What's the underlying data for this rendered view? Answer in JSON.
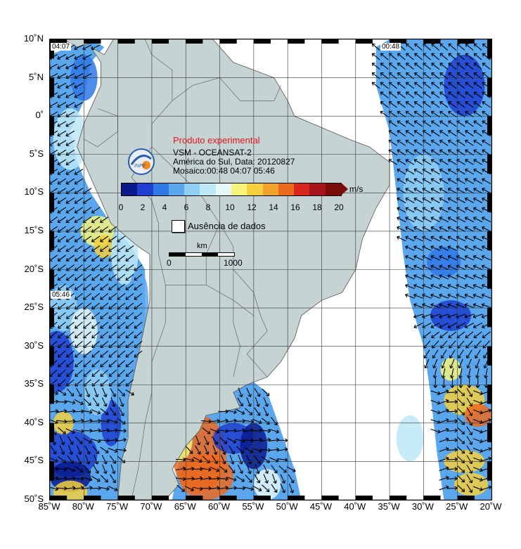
{
  "map": {
    "title": "Produto experimental",
    "subtitle": "VSM - OCEANSAT-2",
    "region_line": "América do Sul, Data: 20120827",
    "mosaic_line": "Mosaico:00:48 04:07 05:46",
    "logo_text": "INPE",
    "lat_labels": [
      "10˚N",
      "5˚N",
      "0˚",
      "5˚S",
      "10˚S",
      "15˚S",
      "20˚S",
      "25˚S",
      "30˚S",
      "35˚S",
      "40˚S",
      "45˚S",
      "50˚S"
    ],
    "lon_labels": [
      "85˚W",
      "80˚W",
      "75˚W",
      "70˚W",
      "65˚W",
      "60˚W",
      "55˚W",
      "50˚W",
      "45˚W",
      "40˚W",
      "35˚W",
      "30˚W",
      "25˚W",
      "20˚W"
    ],
    "lat_values": [
      10,
      5,
      0,
      -5,
      -10,
      -15,
      -20,
      -25,
      -30,
      -35,
      -40,
      -45,
      -50
    ],
    "lon_values": [
      -85,
      -80,
      -75,
      -70,
      -65,
      -60,
      -55,
      -50,
      -45,
      -40,
      -35,
      -30,
      -25,
      -20
    ],
    "pass_times": {
      "west_north": "04:07",
      "east": "00:48",
      "west_south": "05:46"
    }
  },
  "legend": {
    "unit": "m/s",
    "ticks": [
      "0",
      "2",
      "4",
      "6",
      "8",
      "10",
      "12",
      "14",
      "16",
      "18",
      "20"
    ],
    "colors": [
      "#0a1a8c",
      "#1f3fd1",
      "#2f78e6",
      "#5aa7ee",
      "#8fcff4",
      "#bde9f7",
      "#e5f7f8",
      "#f6f37a",
      "#f5cf3d",
      "#f0a22a",
      "#ec6a1e",
      "#d8281d",
      "#a8141a",
      "#7a0b0b"
    ],
    "no_data_label": "Ausência de dados",
    "scale_unit": "km",
    "scale_start": "0",
    "scale_end": "1000"
  },
  "colors": {
    "land": "#c5d3d3",
    "grid": "#333333",
    "ocean_bg": "#ffffff"
  }
}
